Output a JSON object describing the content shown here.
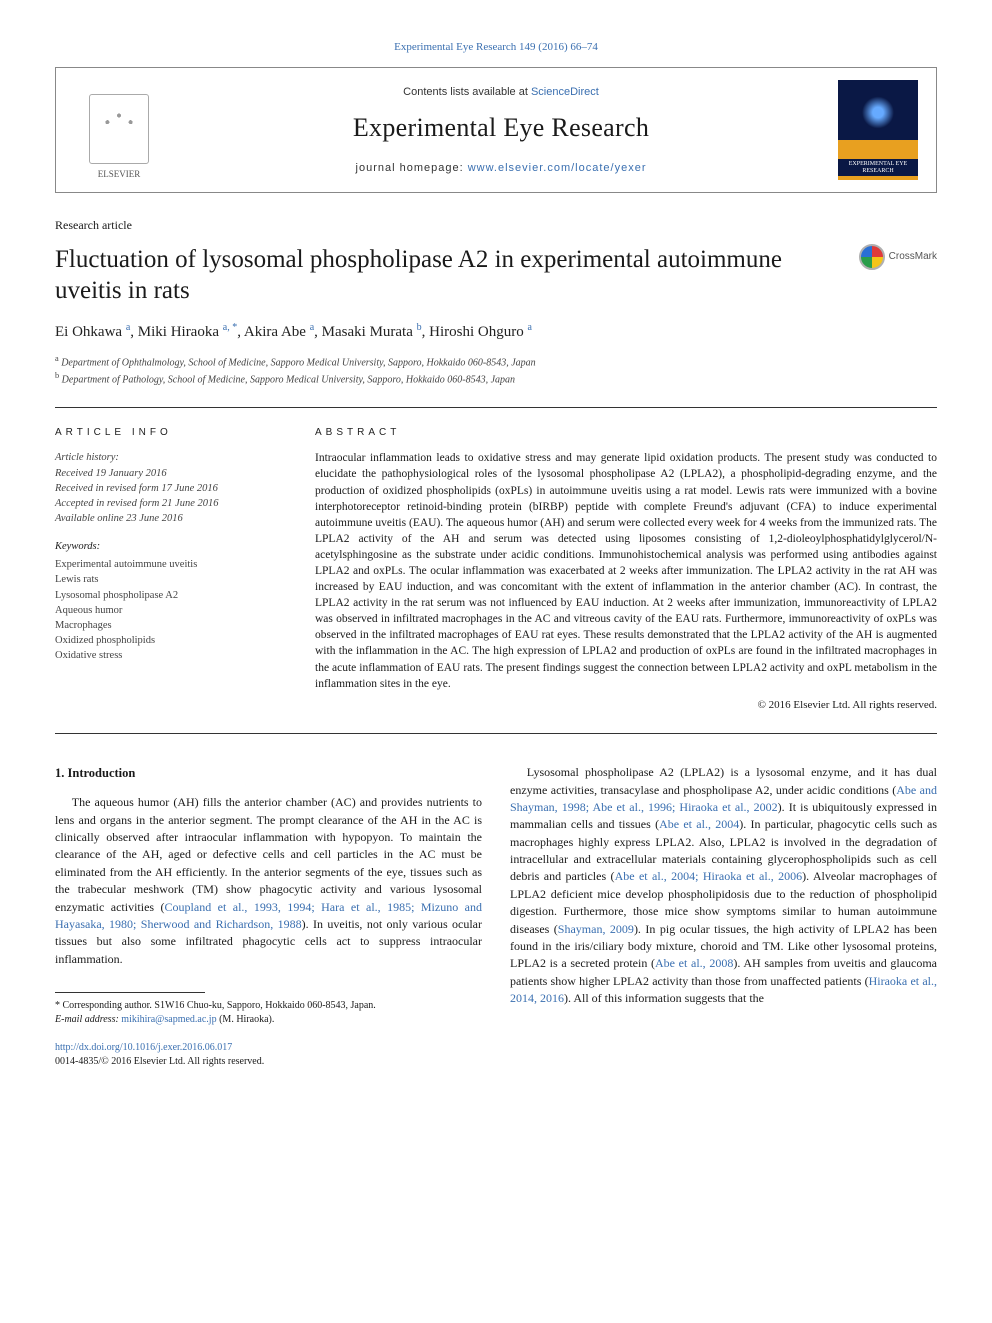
{
  "top_citation": "Experimental Eye Research 149 (2016) 66–74",
  "header": {
    "publisher": "ELSEVIER",
    "contents_prefix": "Contents lists available at ",
    "contents_link": "ScienceDirect",
    "journal": "Experimental Eye Research",
    "homepage_prefix": "journal homepage: ",
    "homepage_url": "www.elsevier.com/locate/yexer",
    "cover_label": "EXPERIMENTAL EYE RESEARCH"
  },
  "article_type": "Research article",
  "title": "Fluctuation of lysosomal phospholipase A2 in experimental autoimmune uveitis in rats",
  "crossmark": "CrossMark",
  "authors_html": "Ei Ohkawa <sup>a</sup>, Miki Hiraoka <sup>a, *</sup>, Akira Abe <sup>a</sup>, Masaki Murata <sup>b</sup>, Hiroshi Ohguro <sup>a</sup>",
  "affiliations": {
    "a": "Department of Ophthalmology, School of Medicine, Sapporo Medical University, Sapporo, Hokkaido 060-8543, Japan",
    "b": "Department of Pathology, School of Medicine, Sapporo Medical University, Sapporo, Hokkaido 060-8543, Japan"
  },
  "article_info": {
    "heading": "ARTICLE INFO",
    "history_label": "Article history:",
    "received": "Received 19 January 2016",
    "revised_form": "Received in revised form 17 June 2016",
    "accepted": "Accepted in revised form 21 June 2016",
    "online": "Available online 23 June 2016",
    "keywords_label": "Keywords:",
    "keywords": [
      "Experimental autoimmune uveitis",
      "Lewis rats",
      "Lysosomal phospholipase A2",
      "Aqueous humor",
      "Macrophages",
      "Oxidized phospholipids",
      "Oxidative stress"
    ]
  },
  "abstract": {
    "heading": "ABSTRACT",
    "text": "Intraocular inflammation leads to oxidative stress and may generate lipid oxidation products. The present study was conducted to elucidate the pathophysiological roles of the lysosomal phospholipase A2 (LPLA2), a phospholipid-degrading enzyme, and the production of oxidized phospholipids (oxPLs) in autoimmune uveitis using a rat model. Lewis rats were immunized with a bovine interphotoreceptor retinoid-binding protein (bIRBP) peptide with complete Freund's adjuvant (CFA) to induce experimental autoimmune uveitis (EAU). The aqueous humor (AH) and serum were collected every week for 4 weeks from the immunized rats. The LPLA2 activity of the AH and serum was detected using liposomes consisting of 1,2-dioleoylphosphatidylglycerol/N-acetylsphingosine as the substrate under acidic conditions. Immunohistochemical analysis was performed using antibodies against LPLA2 and oxPLs. The ocular inflammation was exacerbated at 2 weeks after immunization. The LPLA2 activity in the rat AH was increased by EAU induction, and was concomitant with the extent of inflammation in the anterior chamber (AC). In contrast, the LPLA2 activity in the rat serum was not influenced by EAU induction. At 2 weeks after immunization, immunoreactivity of LPLA2 was observed in infiltrated macrophages in the AC and vitreous cavity of the EAU rats. Furthermore, immunoreactivity of oxPLs was observed in the infiltrated macrophages of EAU rat eyes. These results demonstrated that the LPLA2 activity of the AH is augmented with the inflammation in the AC. The high expression of LPLA2 and production of oxPLs are found in the infiltrated macrophages in the acute inflammation of EAU rats. The present findings suggest the connection between LPLA2 activity and oxPL metabolism in the inflammation sites in the eye.",
    "copyright": "© 2016 Elsevier Ltd. All rights reserved."
  },
  "body": {
    "intro_heading": "1. Introduction",
    "col1_p1": "The aqueous humor (AH) fills the anterior chamber (AC) and provides nutrients to lens and organs in the anterior segment. The prompt clearance of the AH in the AC is clinically observed after intraocular inflammation with hypopyon. To maintain the clearance of the AH, aged or defective cells and cell particles in the AC must be eliminated from the AH efficiently. In the anterior segments of the eye, tissues such as the trabecular meshwork (TM) show phagocytic activity and various lysosomal enzymatic activities (",
    "col1_ref1": "Coupland et al., 1993, 1994; Hara et al., 1985; Mizuno and Hayasaka, 1980; Sherwood and Richardson, 1988",
    "col1_p1b": "). In uveitis, not only various ocular tissues but also some infiltrated phagocytic cells act to suppress intraocular inflammation.",
    "col2_p1": "Lysosomal phospholipase A2 (LPLA2) is a lysosomal enzyme, and it has dual enzyme activities, transacylase and phospholipase A2, under acidic conditions (",
    "col2_ref1": "Abe and Shayman, 1998; Abe et al., 1996; Hiraoka et al., 2002",
    "col2_p1b": "). It is ubiquitously expressed in mammalian cells and tissues (",
    "col2_ref2": "Abe et al., 2004",
    "col2_p1c": "). In particular, phagocytic cells such as macrophages highly express LPLA2. Also, LPLA2 is involved in the degradation of intracellular and extracellular materials containing glycerophospholipids such as cell debris and particles (",
    "col2_ref3": "Abe et al., 2004; Hiraoka et al., 2006",
    "col2_p1d": "). Alveolar macrophages of LPLA2 deficient mice develop phospholipidosis due to the reduction of phospholipid digestion. Furthermore, those mice show symptoms similar to human autoimmune diseases (",
    "col2_ref4": "Shayman, 2009",
    "col2_p1e": "). In pig ocular tissues, the high activity of LPLA2 has been found in the iris/ciliary body mixture, choroid and TM. Like other lysosomal proteins, LPLA2 is a secreted protein (",
    "col2_ref5": "Abe et al., 2008",
    "col2_p1f": "). AH samples from uveitis and glaucoma patients show higher LPLA2 activity than those from unaffected patients (",
    "col2_ref6": "Hiraoka et al., 2014, 2016",
    "col2_p1g": "). All of this information suggests that the"
  },
  "footnote": {
    "corr": "* Corresponding author. S1W16 Chuo-ku, Sapporo, Hokkaido 060-8543, Japan.",
    "email_label": "E-mail address: ",
    "email": "mikihira@sapmed.ac.jp",
    "email_suffix": " (M. Hiraoka)."
  },
  "doi": {
    "url": "http://dx.doi.org/10.1016/j.exer.2016.06.017",
    "issn_line": "0014-4835/© 2016 Elsevier Ltd. All rights reserved."
  },
  "colors": {
    "link": "#3a6fb0",
    "rule": "#333333",
    "muted": "#444444"
  }
}
